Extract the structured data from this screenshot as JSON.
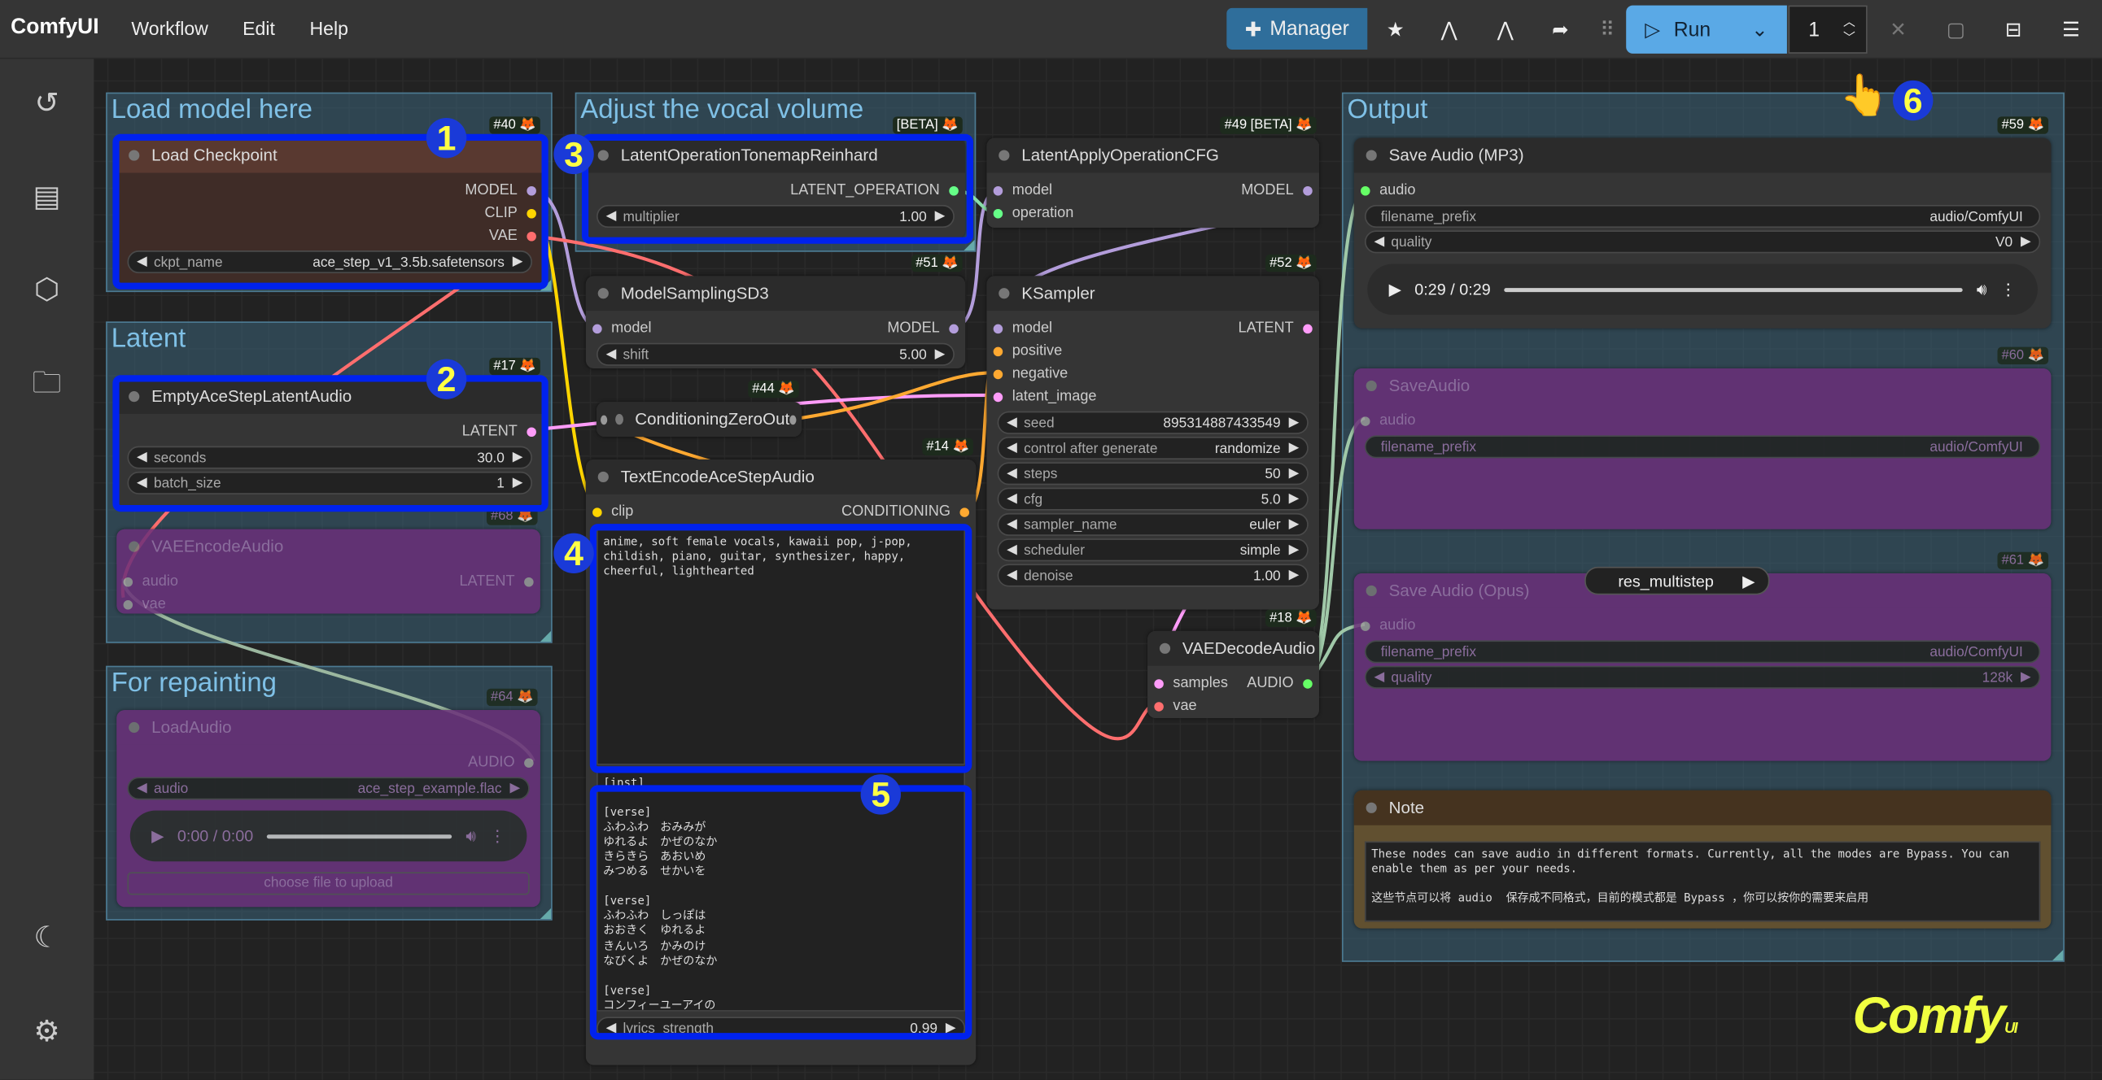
{
  "app": {
    "title": "ComfyUI",
    "menu": [
      "Workflow",
      "Edit",
      "Help"
    ]
  },
  "toolbar": {
    "manager_label": "Manager",
    "run_label": "Run",
    "queue_count": "1",
    "accent": "#5aa9e6",
    "manager_color": "#2f6e9b",
    "icons": [
      "star-icon",
      "node-library-icon",
      "node-library-alt-icon",
      "share-icon",
      "drag-handle-icon",
      "close-icon",
      "panel-icon",
      "bottom-panel-icon",
      "hamburger-menu-icon"
    ]
  },
  "sidebar": {
    "icons": [
      "history-icon",
      "queue-list-icon",
      "model-library-icon",
      "workflows-folder-icon",
      "theme-moon-icon",
      "settings-gear-icon"
    ]
  },
  "groups": [
    {
      "title": "Load model here"
    },
    {
      "title": "Latent"
    },
    {
      "title": "For repainting"
    },
    {
      "title": "Adjust the vocal volume"
    },
    {
      "title": "Output"
    }
  ],
  "nodes": [
    {
      "title": "Load Checkpoint",
      "badge": "#40 🦊",
      "theme": "brown",
      "inputs": [],
      "outputs": [
        {
          "label": "MODEL",
          "color": "#b39ddb"
        },
        {
          "label": "CLIP",
          "color": "#ffd500"
        },
        {
          "label": "VAE",
          "color": "#ff6e6e"
        }
      ],
      "widgets": [
        {
          "type": "combo",
          "name": "ckpt_name",
          "value": "ace_step_v1_3.5b.safetensors"
        }
      ]
    },
    {
      "title": "EmptyAceStepLatentAudio",
      "badge": "#17 🦊",
      "theme": "",
      "inputs": [],
      "outputs": [
        {
          "label": "LATENT",
          "color": "#ff9cf9"
        }
      ],
      "widgets": [
        {
          "type": "number",
          "name": "seconds",
          "value": "30.0"
        },
        {
          "type": "number",
          "name": "batch_size",
          "value": "1"
        }
      ]
    },
    {
      "title": "VAEEncodeAudio",
      "badge": "#68 🦊",
      "theme": "bypass",
      "inputs": [
        {
          "label": "audio",
          "color": "#999"
        },
        {
          "label": "vae",
          "color": "#999"
        }
      ],
      "outputs": [
        {
          "label": "LATENT",
          "color": "#999"
        }
      ],
      "widgets": []
    },
    {
      "title": "LoadAudio",
      "badge": "#64 🦊",
      "theme": "bypass",
      "inputs": [],
      "outputs": [
        {
          "label": "AUDIO",
          "color": "#999"
        }
      ],
      "widgets": [
        {
          "type": "combo",
          "name": "audio",
          "value": "ace_step_example.flac"
        },
        {
          "type": "player",
          "value": "0:00 / 0:00"
        },
        {
          "type": "button",
          "value": "choose file to upload"
        }
      ]
    },
    {
      "title": "LatentOperationTonemapReinhard",
      "badge": "[BETA] 🦊",
      "theme": "",
      "inputs": [],
      "outputs": [
        {
          "label": "LATENT_OPERATION",
          "color": "#66ff88"
        }
      ],
      "widgets": [
        {
          "type": "number",
          "name": "multiplier",
          "value": "1.00"
        }
      ]
    },
    {
      "title": "ModelSamplingSD3",
      "badge": "#51 🦊",
      "theme": "",
      "inputs": [
        {
          "label": "model",
          "color": "#b39ddb"
        }
      ],
      "outputs": [
        {
          "label": "MODEL",
          "color": "#b39ddb"
        }
      ],
      "widgets": [
        {
          "type": "number",
          "name": "shift",
          "value": "5.00"
        }
      ]
    },
    {
      "title": "ConditioningZeroOut",
      "badge": "#44 🦊",
      "theme": "compact",
      "inputs": [],
      "outputs": [],
      "widgets": []
    },
    {
      "title": "TextEncodeAceStepAudio",
      "badge": "#14 🦊",
      "theme": "",
      "inputs": [
        {
          "label": "clip",
          "color": "#ffd500"
        }
      ],
      "outputs": [
        {
          "label": "CONDITIONING",
          "color": "#ffa931"
        }
      ],
      "widgets": [
        {
          "type": "textarea",
          "value": "anime, soft female vocals, kawaii pop, j-pop,\nchildish, piano, guitar, synthesizer, happy,\ncheerful, lighthearted"
        },
        {
          "type": "textarea",
          "value": "[inst]\n\n[verse]\nふわふわ　おみみが\nゆれるよ　かぜのなか\nきらきら　あおいめ\nみつめる　せかいを\n\n[verse]\nふわふわ　しっぽは\nおおきく　ゆれるよ\nきんいろ　かみのけ\nなびくよ　かぜのなか\n\n[verse]\nコンフィーユーアイの"
        },
        {
          "type": "number",
          "name": "lyrics_strength",
          "value": "0.99"
        }
      ]
    },
    {
      "title": "LatentApplyOperationCFG",
      "badge": "#49 [BETA] 🦊",
      "theme": "",
      "inputs": [
        {
          "label": "model",
          "color": "#b39ddb"
        },
        {
          "label": "operation",
          "color": "#66ff88"
        }
      ],
      "outputs": [
        {
          "label": "MODEL",
          "color": "#b39ddb"
        }
      ],
      "widgets": []
    },
    {
      "title": "KSampler",
      "badge": "#52 🦊",
      "theme": "",
      "inputs": [
        {
          "label": "model",
          "color": "#b39ddb"
        },
        {
          "label": "positive",
          "color": "#ffa931"
        },
        {
          "label": "negative",
          "color": "#ffa931"
        },
        {
          "label": "latent_image",
          "color": "#ff9cf9"
        }
      ],
      "outputs": [
        {
          "label": "LATENT",
          "color": "#ff9cf9"
        }
      ],
      "widgets": [
        {
          "type": "number",
          "name": "seed",
          "value": "895314887433549"
        },
        {
          "type": "combo",
          "name": "control after generate",
          "value": "randomize"
        },
        {
          "type": "number",
          "name": "steps",
          "value": "50"
        },
        {
          "type": "number",
          "name": "cfg",
          "value": "5.0"
        },
        {
          "type": "combo",
          "name": "sampler_name",
          "value": "euler"
        },
        {
          "type": "combo",
          "name": "scheduler",
          "value": "simple"
        },
        {
          "type": "number",
          "name": "denoise",
          "value": "1.00"
        }
      ]
    },
    {
      "title": "VAEDecodeAudio",
      "badge": "#18 🦊",
      "theme": "",
      "inputs": [
        {
          "label": "samples",
          "color": "#ff9cf9"
        },
        {
          "label": "vae",
          "color": "#ff6e6e"
        }
      ],
      "outputs": [
        {
          "label": "AUDIO",
          "color": "#66ff66"
        }
      ],
      "widgets": []
    },
    {
      "title": "Save Audio (MP3)",
      "badge": "#59 🦊",
      "theme": "",
      "inputs": [
        {
          "label": "audio",
          "color": "#66ff66"
        }
      ],
      "outputs": [],
      "widgets": [
        {
          "type": "text",
          "name": "filename_prefix",
          "value": "audio/ComfyUI"
        },
        {
          "type": "combo",
          "name": "quality",
          "value": "V0"
        },
        {
          "type": "player",
          "value": "0:29 / 0:29"
        }
      ]
    },
    {
      "title": "SaveAudio",
      "badge": "#60 🦊",
      "theme": "bypass",
      "inputs": [
        {
          "label": "audio",
          "color": "#999"
        }
      ],
      "outputs": [],
      "widgets": [
        {
          "type": "text",
          "name": "filename_prefix",
          "value": "audio/ComfyUI"
        }
      ]
    },
    {
      "title": "Save Audio (Opus)",
      "badge": "#61 🦊",
      "theme": "bypass",
      "inputs": [
        {
          "label": "audio",
          "color": "#999"
        }
      ],
      "outputs": [],
      "widgets": [
        {
          "type": "text",
          "name": "filename_prefix",
          "value": "audio/ComfyUI"
        },
        {
          "type": "combo",
          "name": "quality",
          "value": "128k"
        }
      ]
    },
    {
      "title": "Note",
      "badge": "",
      "theme": "note",
      "inputs": [],
      "outputs": [],
      "widgets": [
        {
          "type": "textarea",
          "value": "These nodes can save audio in different formats. Currently, all the modes are Bypass. You can\nenable them as per your needs.\n\n这些节点可以将 audio  保存成不同格式，目前的模式都是 Bypass ，你可以按你的需要来启用"
        }
      ]
    }
  ],
  "floating_widget": {
    "value": "res_multistep"
  },
  "annotations": [
    "1",
    "2",
    "3",
    "4",
    "5",
    "6"
  ],
  "annotation_color": "#0022ee",
  "pointer": "👆",
  "watermark": {
    "text": "Comfy",
    "suffix": "UI"
  }
}
